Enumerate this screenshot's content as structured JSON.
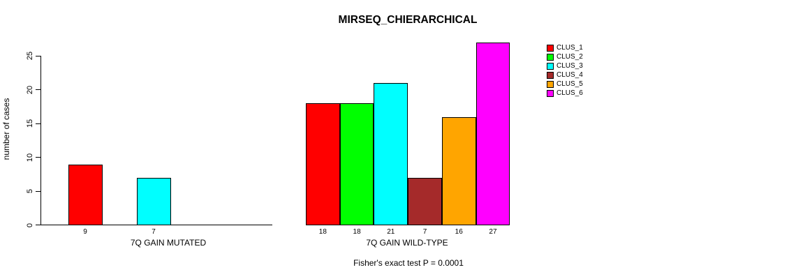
{
  "chart_data": {
    "type": "bar",
    "title": "MIRSEQ_CHIERARCHICAL",
    "ylabel": "number of cases",
    "xlabel": "",
    "ylim": [
      0,
      27
    ],
    "yticks": [
      0,
      5,
      10,
      15,
      20,
      25
    ],
    "grid": false,
    "legend_position": "right",
    "annotation": "Fisher's exact test P = 0.0001",
    "legend": [
      {
        "label": "CLUS_1",
        "color": "#FF0000"
      },
      {
        "label": "CLUS_2",
        "color": "#00FF00"
      },
      {
        "label": "CLUS_3",
        "color": "#00FFFF"
      },
      {
        "label": "CLUS_4",
        "color": "#A52A2A"
      },
      {
        "label": "CLUS_5",
        "color": "#FFA500"
      },
      {
        "label": "CLUS_6",
        "color": "#FF00FF"
      }
    ],
    "groups": [
      {
        "label": "7Q GAIN MUTATED",
        "slots": 6,
        "bars": [
          {
            "cluster": "CLUS_1",
            "value": 9,
            "slot": 0
          },
          {
            "cluster": "CLUS_3",
            "value": 7,
            "slot": 2
          }
        ]
      },
      {
        "label": "7Q GAIN WILD-TYPE",
        "slots": 6,
        "bars": [
          {
            "cluster": "CLUS_1",
            "value": 18,
            "slot": 0
          },
          {
            "cluster": "CLUS_2",
            "value": 18,
            "slot": 1
          },
          {
            "cluster": "CLUS_3",
            "value": 21,
            "slot": 2
          },
          {
            "cluster": "CLUS_4",
            "value": 7,
            "slot": 3
          },
          {
            "cluster": "CLUS_5",
            "value": 16,
            "slot": 4
          },
          {
            "cluster": "CLUS_6",
            "value": 27,
            "slot": 5
          }
        ]
      }
    ]
  }
}
